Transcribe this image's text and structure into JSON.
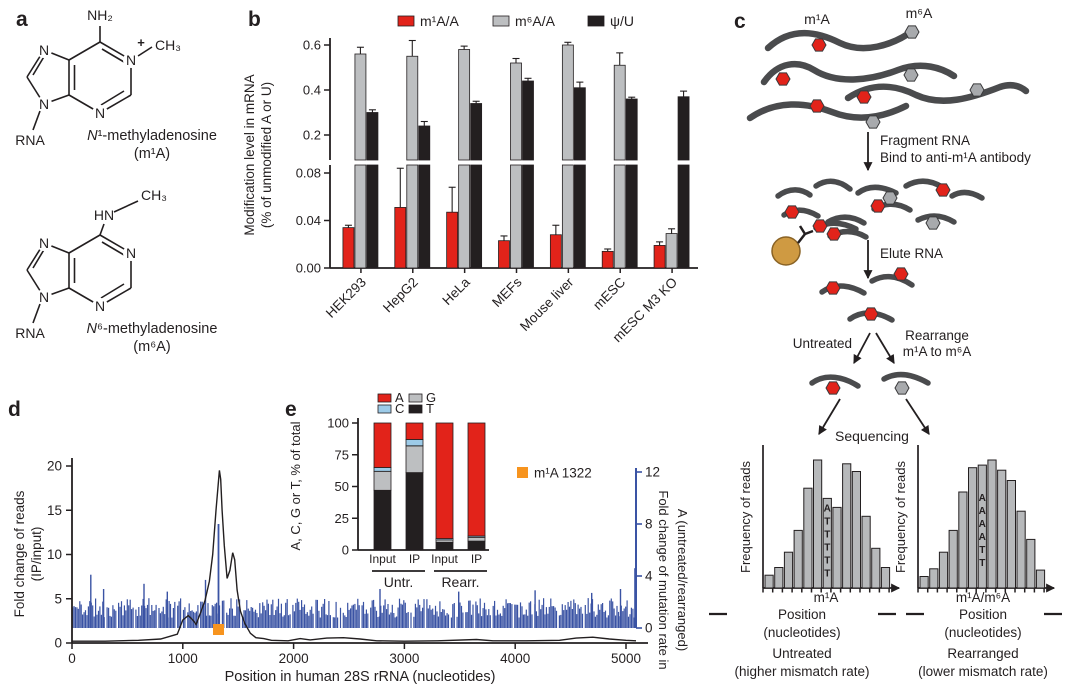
{
  "panel_labels": {
    "a": "a",
    "b": "b",
    "c": "c",
    "d": "d",
    "e": "e"
  },
  "colors": {
    "red": "#e2231a",
    "gray": "#bdbfc1",
    "black": "#231f20",
    "blue": "#3a53a4",
    "orange": "#f7941e",
    "light_blue": "#9dcbe8",
    "strand": "#4a4b4d",
    "gold": "#cf9a42"
  },
  "panel_a": {
    "nh2": "NH₂",
    "ch3": "CH₃",
    "hn": "HN",
    "plus": "+",
    "rna": "RNA",
    "n": "N",
    "s1_name_italic": "N",
    "s1_name_rest": "¹-methyladenosine",
    "s1_abbr": "(m¹A)",
    "s2_name_italic": "N",
    "s2_name_rest": "⁶-methyladenosine",
    "s2_abbr": "(m⁶A)"
  },
  "panel_c": {
    "m1a": "m¹A",
    "m6a": "m⁶A",
    "step1_line1": "Fragment RNA",
    "step1_line2": "Bind to anti-m¹A antibody",
    "step2": "Elute RNA",
    "branch_left": "Untreated",
    "branch_right_line1": "Rearrange",
    "branch_right_line2": "m¹A to m⁶A",
    "step3": "Sequencing"
  },
  "chart_data": [
    {
      "id": "panel_b",
      "type": "bar",
      "categories": [
        "HEK293",
        "HepG2",
        "HeLa",
        "MEFs",
        "Mouse liver",
        "mESC",
        "mESC M3 KO"
      ],
      "series": [
        {
          "name": "m¹A/A",
          "color_key": "red",
          "values": [
            0.034,
            0.051,
            0.047,
            0.023,
            0.028,
            0.014,
            0.019
          ],
          "errors": [
            0.002,
            0.033,
            0.021,
            0.004,
            0.008,
            0.002,
            0.003
          ]
        },
        {
          "name": "m⁶A/A",
          "color_key": "gray",
          "values": [
            0.56,
            0.55,
            0.58,
            0.52,
            0.6,
            0.51,
            0.029
          ],
          "errors": [
            0.03,
            0.07,
            0.015,
            0.02,
            0.012,
            0.055,
            0.004
          ]
        },
        {
          "name": "ψ/U",
          "color_key": "black",
          "values": [
            0.3,
            0.24,
            0.34,
            0.44,
            0.41,
            0.36,
            0.37
          ],
          "errors": [
            0.012,
            0.02,
            0.01,
            0.012,
            0.025,
            0.008,
            0.025
          ]
        }
      ],
      "ylabel_line1": "Modification level in mRNA",
      "ylabel_line2": "(% of unmodified A or U)",
      "axis_break": true,
      "upper_ticks": [
        {
          "v": 0.2,
          "label": "0.2"
        },
        {
          "v": 0.4,
          "label": "0.4"
        },
        {
          "v": 0.6,
          "label": "0.6"
        }
      ],
      "lower_ticks": [
        {
          "v": 0,
          "label": "0.00"
        },
        {
          "v": 0.04,
          "label": "0.04"
        },
        {
          "v": 0.08,
          "label": "0.08"
        }
      ],
      "upper_range": [
        0.089,
        0.63
      ],
      "lower_range": [
        0,
        0.086
      ]
    },
    {
      "id": "panel_d",
      "type": "line+bar",
      "xlabel": "Position in human 28S rRNA (nucleotides)",
      "ylabel_left_line1": "Fold change of reads",
      "ylabel_left_line2": "(IP/input)",
      "ylabel_right_line1": "Fold change of mutation rate in",
      "ylabel_right_line2": "A (untreated/rearranged)",
      "x_ticks": [
        0,
        1000,
        2000,
        3000,
        4000,
        5000
      ],
      "x_max": 5090,
      "left_axis": {
        "ticks": [
          0,
          5,
          10,
          15,
          20
        ],
        "max": 20
      },
      "right_axis": {
        "ticks": [
          0,
          4,
          8,
          12
        ],
        "max": 12
      },
      "legend": {
        "label": "m¹A 1322",
        "color_key": "orange"
      },
      "marker_nt": 1322,
      "ip_line_nt_fold": [
        [
          0,
          0.2
        ],
        [
          300,
          0.2
        ],
        [
          600,
          0.3
        ],
        [
          800,
          0.45
        ],
        [
          950,
          1.0
        ],
        [
          1000,
          2.6
        ],
        [
          1050,
          3.1
        ],
        [
          1090,
          2.6
        ],
        [
          1120,
          2.1
        ],
        [
          1160,
          3.4
        ],
        [
          1200,
          4.8
        ],
        [
          1240,
          7
        ],
        [
          1270,
          10
        ],
        [
          1300,
          15
        ],
        [
          1330,
          19.5
        ],
        [
          1342,
          18.5
        ],
        [
          1355,
          15
        ],
        [
          1375,
          11
        ],
        [
          1400,
          7.3
        ],
        [
          1425,
          8.2
        ],
        [
          1450,
          10.2
        ],
        [
          1468,
          9.4
        ],
        [
          1490,
          6
        ],
        [
          1520,
          3.6
        ],
        [
          1560,
          2.2
        ],
        [
          1610,
          1.1
        ],
        [
          1660,
          0.6
        ],
        [
          1730,
          0.5
        ],
        [
          1800,
          0.3
        ],
        [
          1950,
          0.25
        ],
        [
          2060,
          0.5
        ],
        [
          2150,
          0.35
        ],
        [
          2300,
          0.55
        ],
        [
          2450,
          0.6
        ],
        [
          2600,
          0.45
        ],
        [
          2750,
          0.25
        ],
        [
          3000,
          0.2
        ],
        [
          3300,
          0.25
        ],
        [
          3650,
          0.4
        ],
        [
          3800,
          0.25
        ],
        [
          4100,
          0.25
        ],
        [
          4400,
          0.3
        ],
        [
          4550,
          0.55
        ],
        [
          4700,
          0.65
        ],
        [
          4850,
          0.45
        ],
        [
          5000,
          0.3
        ],
        [
          5090,
          0.25
        ]
      ],
      "mutation_spike": {
        "nt": 1322,
        "value": 8.0
      },
      "noise_bars": {
        "seed": 11,
        "step_nt": 13,
        "min": 0.8,
        "max": 2.3,
        "gap_prob": 0.08
      },
      "extra_spikes": [
        [
          170,
          4.1
        ],
        [
          285,
          3.0
        ],
        [
          650,
          3.4
        ],
        [
          860,
          2.8
        ],
        [
          1205,
          3.7
        ],
        [
          2780,
          3.0
        ],
        [
          3490,
          2.8
        ],
        [
          4180,
          2.9
        ],
        [
          4690,
          2.7
        ],
        [
          4950,
          3.0
        ],
        [
          5080,
          4.6
        ]
      ]
    },
    {
      "id": "panel_e",
      "type": "stacked-bar",
      "ylabel": "A, C, G or T, % of total",
      "y_ticks": [
        0,
        25,
        50,
        75,
        100
      ],
      "bar_labels": [
        "Input",
        "IP",
        "Input",
        "IP"
      ],
      "group_labels": [
        "Untr.",
        "Rearr."
      ],
      "legend": [
        {
          "label": "A",
          "color_key": "red"
        },
        {
          "label": "G",
          "color_key": "gray"
        },
        {
          "label": "C",
          "color_key": "light_blue"
        },
        {
          "label": "T",
          "color_key": "black"
        }
      ],
      "stack_order": [
        "T",
        "G",
        "C",
        "A"
      ],
      "values": {
        "T": [
          47,
          61,
          6,
          7
        ],
        "G": [
          15,
          21,
          2,
          3
        ],
        "C": [
          3,
          5,
          1,
          1
        ],
        "A": [
          35,
          13,
          91,
          89
        ]
      }
    },
    {
      "id": "c_hist_left",
      "type": "histogram",
      "ylabel": "Frequency of reads",
      "bars": [
        1.0,
        1.6,
        2.8,
        4.5,
        7.8,
        10,
        7.0,
        6.3,
        9.7,
        9.1,
        5.6,
        3.1,
        1.6
      ],
      "letters_bar": 6,
      "letters": [
        "A",
        "T",
        "T",
        "T",
        "T",
        "T"
      ],
      "letters_red_count": 1,
      "site_label": "m¹A",
      "xlabel": "Position",
      "xlabel2": "(nucleotides)",
      "caption1": "Untreated",
      "caption2": "(higher mismatch rate)"
    },
    {
      "id": "c_hist_right",
      "type": "histogram",
      "ylabel": "Frequency of reads",
      "bars": [
        0.9,
        1.5,
        2.8,
        4.5,
        7.5,
        9.4,
        9.6,
        10,
        9.2,
        8.4,
        6.0,
        3.8,
        1.4
      ],
      "letters_bar": 6,
      "letters": [
        "A",
        "A",
        "A",
        "A",
        "T",
        "T"
      ],
      "letters_red_count": 4,
      "site_label": "m¹A/m⁶A",
      "xlabel": "Position",
      "xlabel2": "(nucleotides)",
      "caption1": "Rearranged",
      "caption2": "(lower mismatch rate)"
    }
  ]
}
